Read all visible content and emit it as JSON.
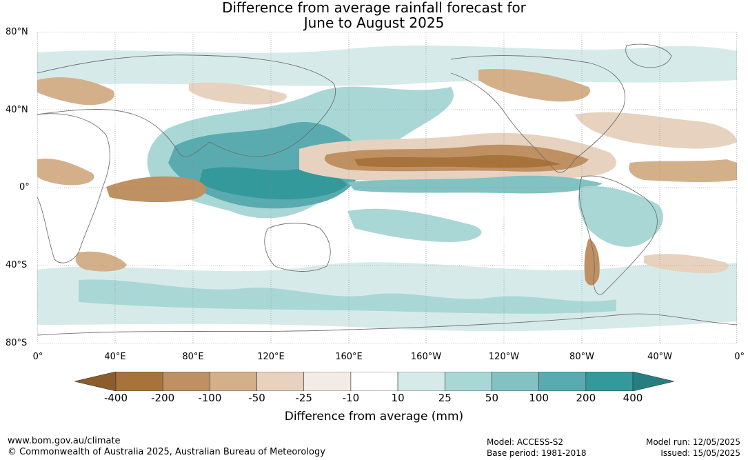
{
  "title": {
    "line1": "Difference from average rainfall forecast for",
    "line2": "June to August 2025"
  },
  "map": {
    "lat_labels": [
      "80°N",
      "40°N",
      "0°",
      "40°S",
      "80°S"
    ],
    "lon_labels": [
      "0°",
      "40°E",
      "80°E",
      "120°E",
      "160°E",
      "160°W",
      "120°W",
      "80°W",
      "40°W",
      "0°"
    ]
  },
  "colorbar": {
    "ticks": [
      "-400",
      "-200",
      "-100",
      "-50",
      "-25",
      "-10",
      "10",
      "25",
      "50",
      "100",
      "200",
      "400"
    ],
    "colors": [
      "#a8733a",
      "#bf9062",
      "#d4b08a",
      "#e6d2bf",
      "#f2ebe6",
      "#ffffff",
      "#d6ebe9",
      "#a9d7d6",
      "#83c2c2",
      "#5aabaf",
      "#33999a"
    ],
    "low_extend_color": "#8d5c2c",
    "high_extend_color": "#257f80",
    "label": "Difference from average (mm)"
  },
  "footer": {
    "website": "www.bom.gov.au/climate",
    "copyright": "© Commonwealth of Australia 2025, Australian Bureau of Meteorology",
    "model": "Model: ACCESS-S2",
    "base_period": "Base period: 1981-2018",
    "model_run": "Model run: 12/05/2025",
    "issued": "Issued: 15/05/2025"
  }
}
